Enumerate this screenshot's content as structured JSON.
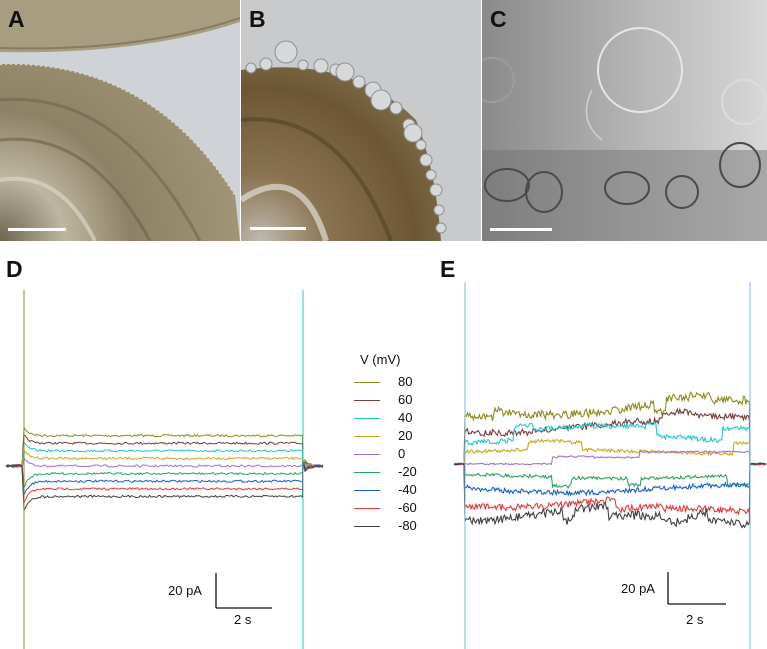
{
  "panel_labels": {
    "a": "A",
    "b": "B",
    "c": "C",
    "d": "D",
    "e": "E"
  },
  "legend": {
    "title": "V (mV)",
    "entries": [
      {
        "label": "80",
        "color": "#8b8b1e"
      },
      {
        "label": "60",
        "color": "#7a3b3b"
      },
      {
        "label": "40",
        "color": "#20c8c8"
      },
      {
        "label": "20",
        "color": "#c8a820"
      },
      {
        "label": "0",
        "color": "#a070d8"
      },
      {
        "label": "-20",
        "color": "#30a060"
      },
      {
        "label": "-40",
        "color": "#1060d0"
      },
      {
        "label": "-60",
        "color": "#e03a3a"
      },
      {
        "label": "-80",
        "color": "#404040"
      }
    ]
  },
  "scale_bars": {
    "d": {
      "current": "20 pA",
      "time": "2 s"
    },
    "e": {
      "current": "20 pA",
      "time": "2 s"
    }
  }
}
